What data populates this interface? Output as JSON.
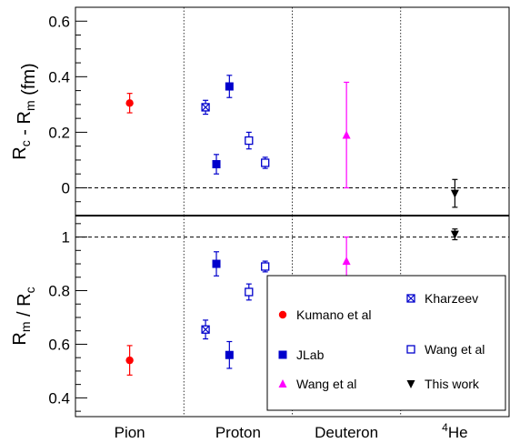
{
  "chart_data": [
    {
      "type": "scatter",
      "panel": "top",
      "ylabel_main": "R",
      "ylabel_parts": [
        {
          "t": "R",
          "sub": false
        },
        {
          "t": "c",
          "sub": true
        },
        {
          "t": " - R",
          "sub": false
        },
        {
          "t": "m",
          "sub": true
        },
        {
          "t": " (fm)",
          "sub": false
        }
      ],
      "ylim": [
        -0.1,
        0.65
      ],
      "yticks": [
        0,
        0.2,
        0.4,
        0.6
      ],
      "ytick_labels": [
        "0",
        "0.2",
        "0.4",
        "0.6"
      ],
      "reference_line": 0,
      "points": [
        {
          "series": "Kumano et al",
          "x": 0.5,
          "y": 0.305,
          "lo": 0.035,
          "hi": 0.035
        },
        {
          "series": "Kharzeev",
          "x": 1.2,
          "y": 0.29,
          "lo": 0.025,
          "hi": 0.025
        },
        {
          "series": "JLab",
          "x": 1.3,
          "y": 0.085,
          "lo": 0.035,
          "hi": 0.035
        },
        {
          "series": "JLab",
          "x": 1.42,
          "y": 0.365,
          "lo": 0.04,
          "hi": 0.04
        },
        {
          "series": "Wang et al",
          "x": 1.6,
          "y": 0.17,
          "lo": 0.03,
          "hi": 0.03
        },
        {
          "series": "Wang et al",
          "x": 1.75,
          "y": 0.09,
          "lo": 0.02,
          "hi": 0.02
        },
        {
          "series": "Wang et al (d)",
          "x": 2.5,
          "y": 0.19,
          "lo": 0.19,
          "hi": 0.19
        },
        {
          "series": "This work",
          "x": 3.5,
          "y": -0.02,
          "lo": 0.05,
          "hi": 0.05
        }
      ]
    },
    {
      "type": "scatter",
      "panel": "bottom",
      "ylabel_parts": [
        {
          "t": "R",
          "sub": false
        },
        {
          "t": "m",
          "sub": true
        },
        {
          "t": " / R",
          "sub": false
        },
        {
          "t": "c",
          "sub": true
        }
      ],
      "ylim": [
        0.33,
        1.08
      ],
      "yticks": [
        0.4,
        0.6,
        0.8,
        1
      ],
      "ytick_labels": [
        "0.4",
        "0.6",
        "0.8",
        "1"
      ],
      "reference_line": 1,
      "points": [
        {
          "series": "Kumano et al",
          "x": 0.5,
          "y": 0.54,
          "lo": 0.055,
          "hi": 0.055
        },
        {
          "series": "Kharzeev",
          "x": 1.2,
          "y": 0.655,
          "lo": 0.035,
          "hi": 0.035
        },
        {
          "series": "JLab",
          "x": 1.3,
          "y": 0.9,
          "lo": 0.045,
          "hi": 0.045
        },
        {
          "series": "JLab",
          "x": 1.42,
          "y": 0.56,
          "lo": 0.05,
          "hi": 0.05
        },
        {
          "series": "Wang et al",
          "x": 1.6,
          "y": 0.795,
          "lo": 0.03,
          "hi": 0.03
        },
        {
          "series": "Wang et al",
          "x": 1.75,
          "y": 0.89,
          "lo": 0.02,
          "hi": 0.02
        },
        {
          "series": "Wang et al (d)",
          "x": 2.5,
          "y": 0.91,
          "lo": 0.09,
          "hi": 0.09
        },
        {
          "series": "This work",
          "x": 3.5,
          "y": 1.01,
          "lo": 0.02,
          "hi": 0.02
        }
      ]
    }
  ],
  "x_categories": [
    {
      "label": "Pion",
      "sup": ""
    },
    {
      "label": "Proton",
      "sup": ""
    },
    {
      "label": "Deuteron",
      "sup": ""
    },
    {
      "label": "He",
      "sup": "4"
    }
  ],
  "x_dividers": [
    1,
    2,
    3
  ],
  "x_range": [
    0,
    4
  ],
  "series_styles": {
    "Kumano et al": {
      "marker": "circle",
      "color": "#ff0000"
    },
    "Kharzeev": {
      "marker": "square-x",
      "color": "#0000cc"
    },
    "JLab": {
      "marker": "square",
      "color": "#0000cc"
    },
    "Wang et al": {
      "marker": "open-square",
      "color": "#0000cc"
    },
    "Wang et al (d)": {
      "marker": "triangle-up",
      "color": "#ff00ff"
    },
    "This work": {
      "marker": "triangle-down",
      "color": "#000000"
    }
  },
  "legend": [
    {
      "label": "Kumano et al",
      "style": "Kumano et al"
    },
    {
      "label": "Kharzeev",
      "style": "Kharzeev"
    },
    {
      "label": "JLab",
      "style": "JLab"
    },
    {
      "label": "Wang et al",
      "style": "Wang et al"
    },
    {
      "label": "Wang et al",
      "style": "Wang et al (d)"
    },
    {
      "label": "This work",
      "style": "This work"
    }
  ],
  "legend_position": "bottom-right"
}
